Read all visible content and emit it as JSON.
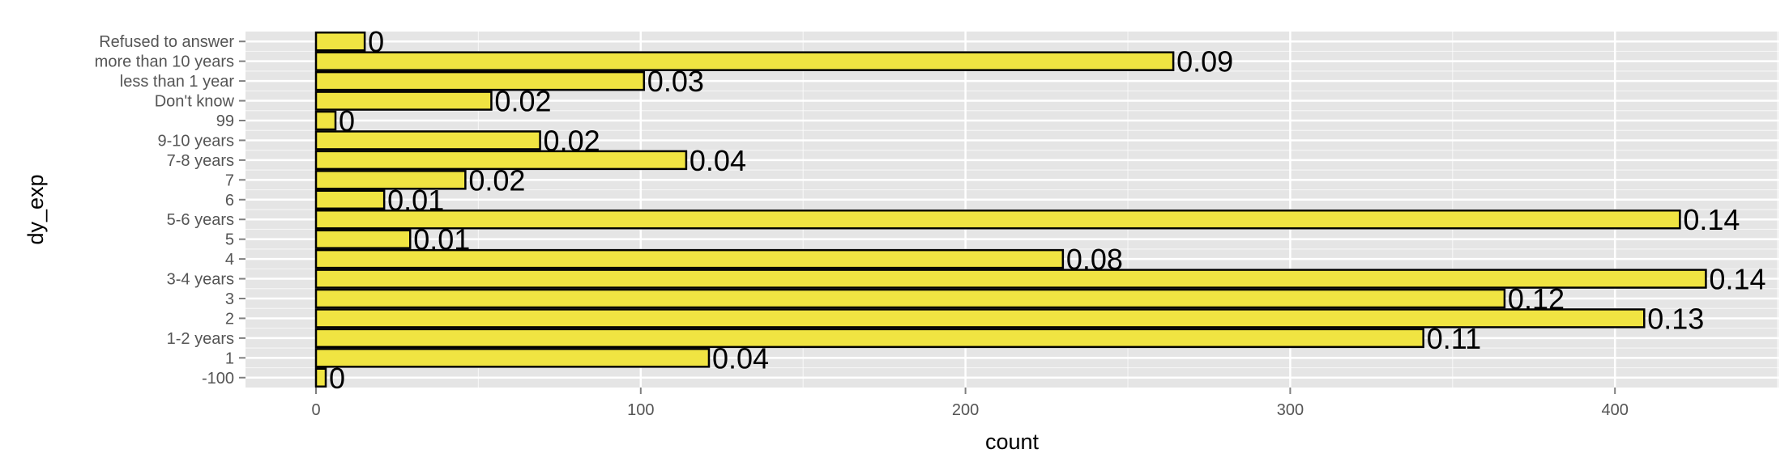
{
  "chart_data": {
    "type": "bar",
    "orientation": "horizontal",
    "xlabel": "count",
    "ylabel": "dy_exp",
    "xlim": [
      -22,
      450
    ],
    "x_ticks": [
      0,
      100,
      200,
      300,
      400
    ],
    "grid": true,
    "colors": {
      "panel": "#E5E5E5",
      "grid": "#FFFFFF",
      "bar_fill": "#F0E442",
      "bar_stroke": "#000000",
      "tick_text": "#555555"
    },
    "categories": [
      "-100",
      "1",
      "1-2 years",
      "2",
      "3",
      "3-4 years",
      "4",
      "5",
      "5-6 years",
      "6",
      "7",
      "7-8 years",
      "9-10 years",
      "99",
      "Don't know",
      "less than 1 year",
      "more than 10 years",
      "Refused to answer"
    ],
    "values": [
      3,
      121,
      341,
      409,
      366,
      428,
      230,
      29,
      420,
      21,
      46,
      114,
      69,
      6,
      54,
      101,
      264,
      15
    ],
    "labels": [
      "0",
      "0.04",
      "0.11",
      "0.13",
      "0.12",
      "0.14",
      "0.08",
      "0.01",
      "0.14",
      "0.01",
      "0.02",
      "0.04",
      "0.02",
      "0",
      "0.02",
      "0.03",
      "0.09",
      "0"
    ]
  }
}
